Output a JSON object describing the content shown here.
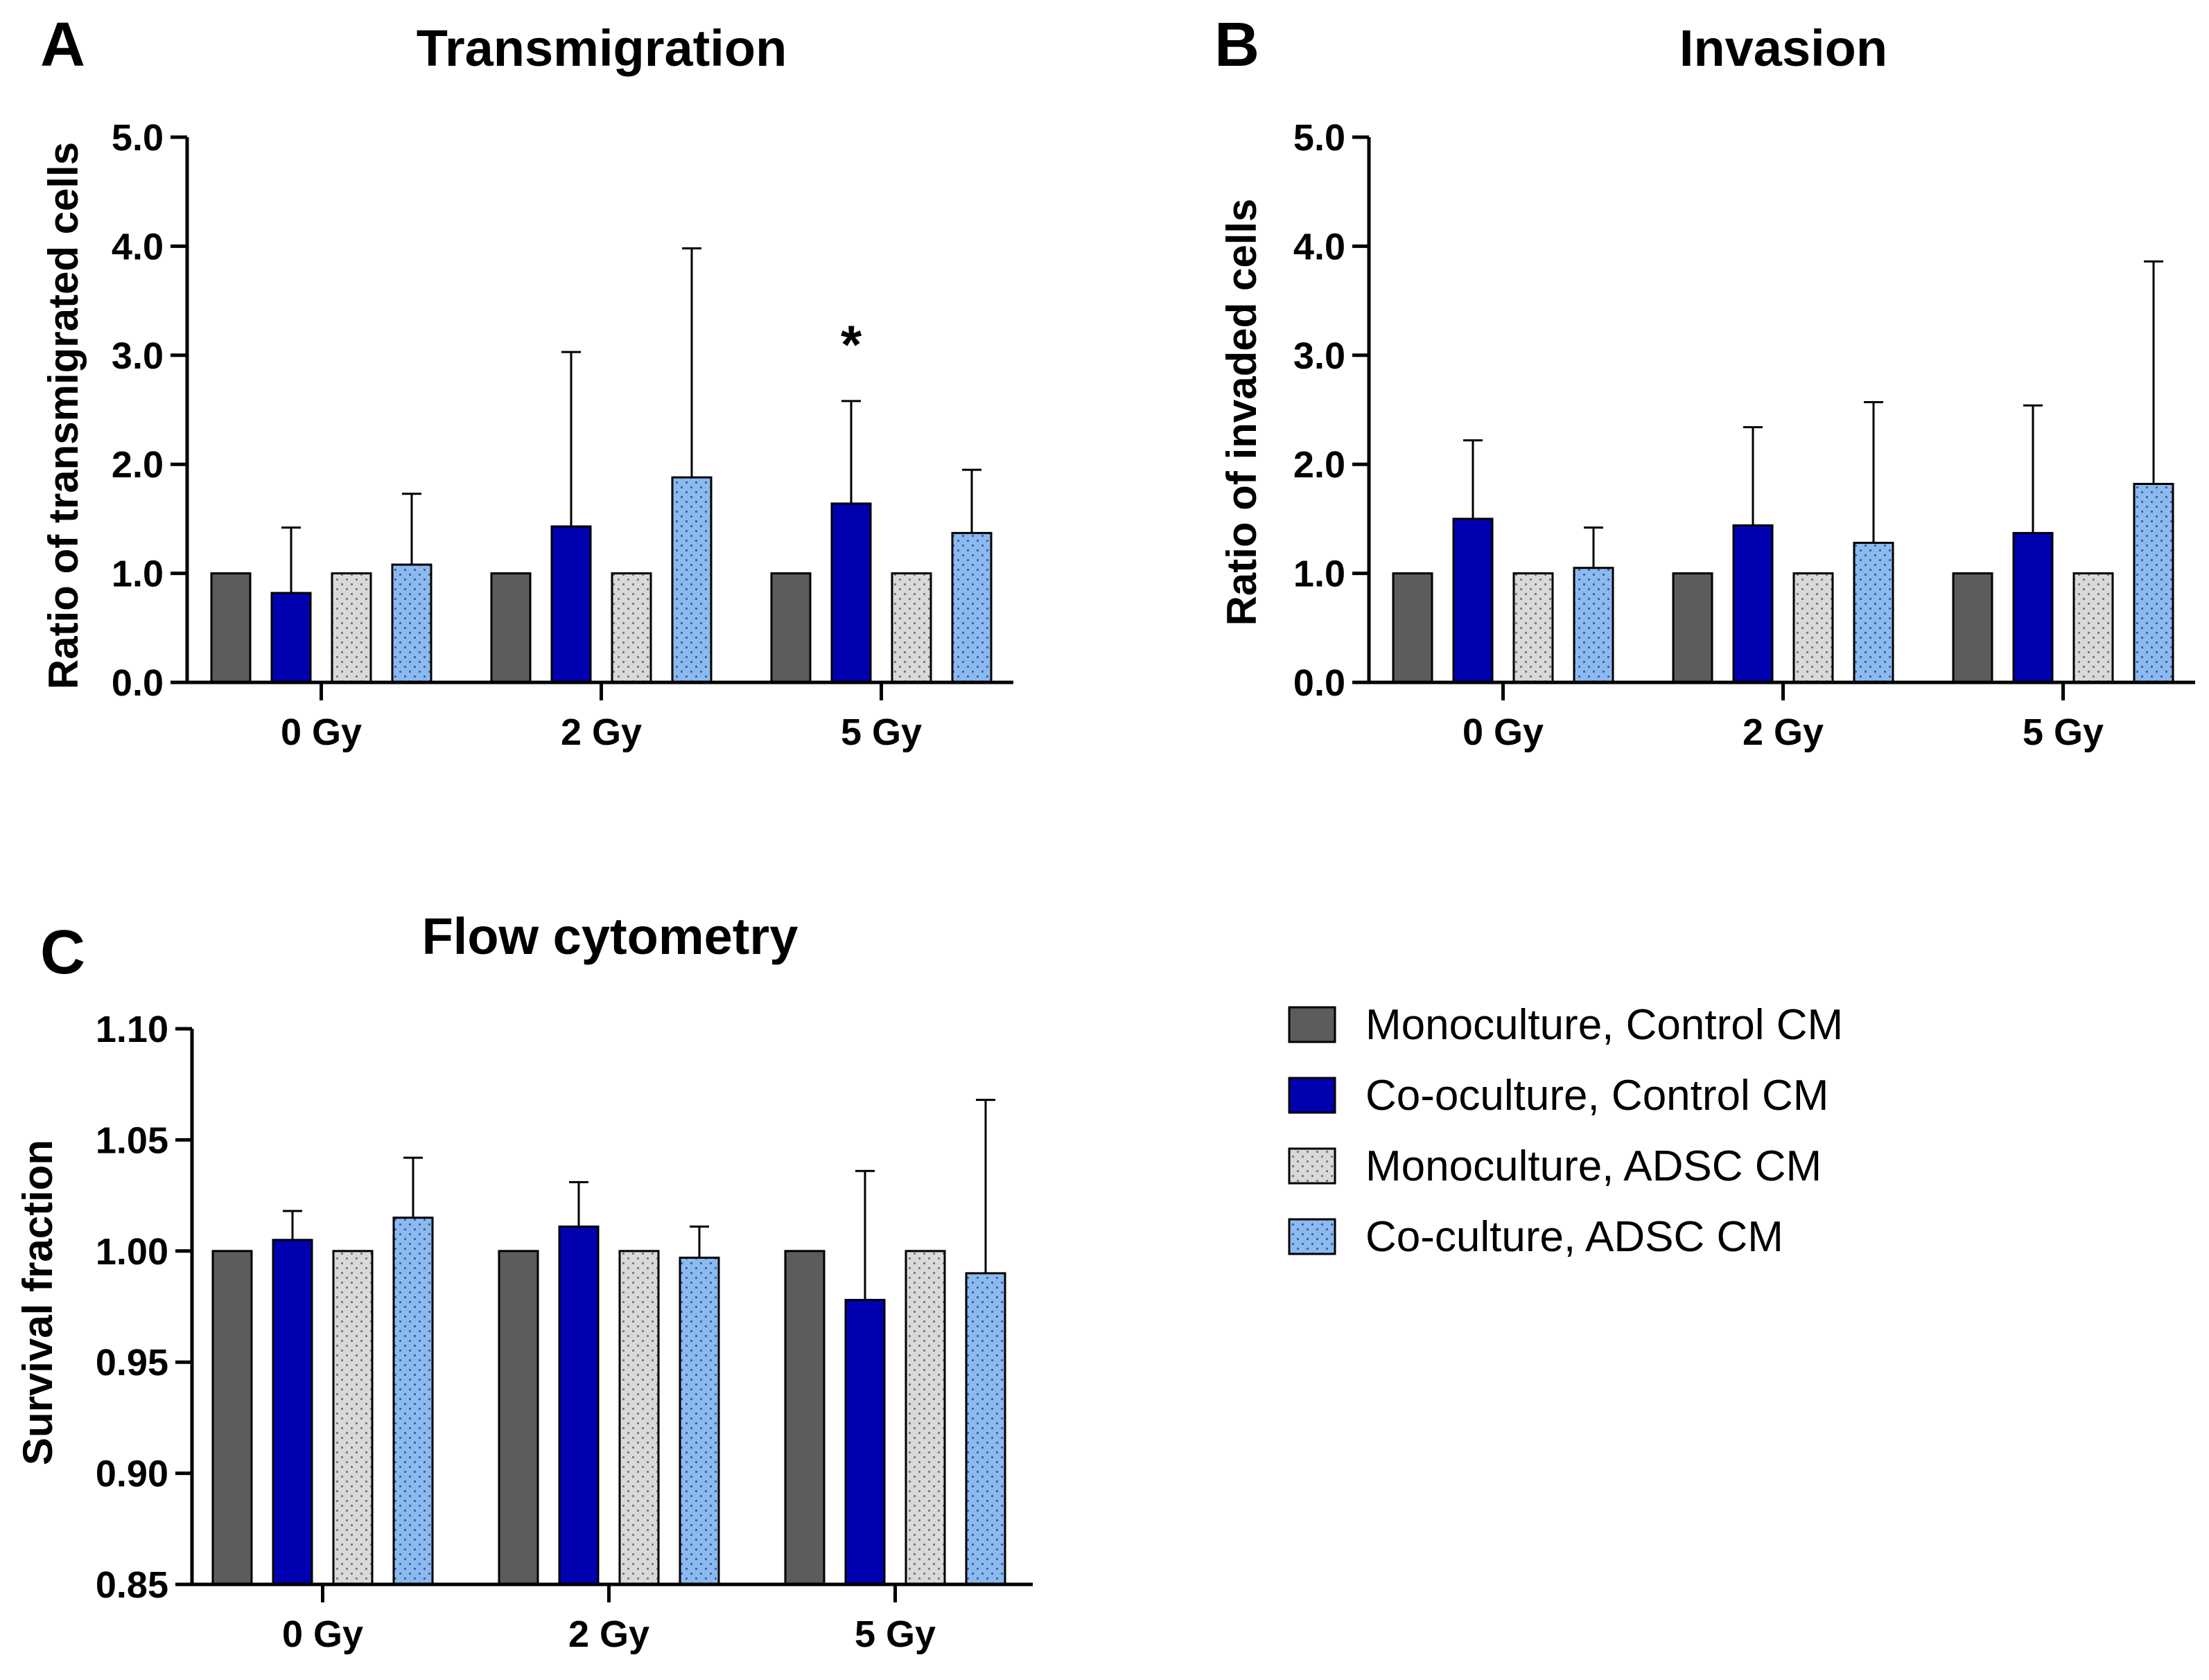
{
  "colors": {
    "monoculture_control": "#5c5c5c",
    "coculture_control": "#0000b0",
    "monoculture_adsc": "#d9d9d9",
    "coculture_adsc": "#8cbaf0"
  },
  "legend": [
    {
      "label": "Monoculture, Control CM",
      "series": 0
    },
    {
      "label": "Co-oculture, Control CM",
      "series": 1
    },
    {
      "label": "Monoculture, ADSC CM",
      "series": 2
    },
    {
      "label": "Co-culture, ADSC CM",
      "series": 3
    }
  ],
  "chart_data": [
    {
      "panel": "A",
      "type": "bar",
      "title": "Transmigration",
      "ylabel": "Ratio of transmigrated cells",
      "xlabel": "",
      "categories": [
        "0 Gy",
        "2 Gy",
        "5 Gy"
      ],
      "ylim": [
        0,
        5
      ],
      "yticks": [
        "0.0",
        "1.0",
        "2.0",
        "3.0",
        "4.0",
        "5.0"
      ],
      "series": [
        {
          "name": "Monoculture, Control CM",
          "values": [
            1.0,
            1.0,
            1.0
          ],
          "errors": [
            0,
            0,
            0
          ]
        },
        {
          "name": "Co-oculture, Control CM",
          "values": [
            0.82,
            1.43,
            1.64
          ],
          "errors": [
            0.6,
            1.6,
            0.94
          ]
        },
        {
          "name": "Monoculture, ADSC CM",
          "values": [
            1.0,
            1.0,
            1.0
          ],
          "errors": [
            0,
            0,
            0
          ]
        },
        {
          "name": "Co-culture, ADSC CM",
          "values": [
            1.08,
            1.88,
            1.37
          ],
          "errors": [
            0.65,
            2.1,
            0.58
          ]
        }
      ],
      "annotations": [
        {
          "text": "*",
          "category": 2,
          "series": 1
        }
      ]
    },
    {
      "panel": "B",
      "type": "bar",
      "title": "Invasion",
      "ylabel": "Ratio of invaded cells",
      "xlabel": "",
      "categories": [
        "0 Gy",
        "2 Gy",
        "5 Gy"
      ],
      "ylim": [
        0,
        5
      ],
      "yticks": [
        "0.0",
        "1.0",
        "2.0",
        "3.0",
        "4.0",
        "5.0"
      ],
      "series": [
        {
          "name": "Monoculture, Control CM",
          "values": [
            1.0,
            1.0,
            1.0
          ],
          "errors": [
            0,
            0,
            0
          ]
        },
        {
          "name": "Co-oculture, Control CM",
          "values": [
            1.5,
            1.44,
            1.37
          ],
          "errors": [
            0.72,
            0.9,
            1.17
          ]
        },
        {
          "name": "Monoculture, ADSC CM",
          "values": [
            1.0,
            1.0,
            1.0
          ],
          "errors": [
            0,
            0,
            0
          ]
        },
        {
          "name": "Co-culture, ADSC CM",
          "values": [
            1.05,
            1.28,
            1.82
          ],
          "errors": [
            0.37,
            1.29,
            2.04
          ]
        }
      ],
      "annotations": []
    },
    {
      "panel": "C",
      "type": "bar",
      "title": "Flow cytometry",
      "ylabel": "Survival fraction",
      "xlabel": "",
      "categories": [
        "0 Gy",
        "2 Gy",
        "5 Gy"
      ],
      "ylim": [
        0.85,
        1.1
      ],
      "yticks": [
        "0.85",
        "0.90",
        "0.95",
        "1.00",
        "1.05",
        "1.10"
      ],
      "series": [
        {
          "name": "Monoculture, Control CM",
          "values": [
            1.0,
            1.0,
            1.0
          ],
          "errors": [
            0,
            0,
            0
          ]
        },
        {
          "name": "Co-oculture, Control CM",
          "values": [
            1.005,
            1.011,
            0.978
          ],
          "errors": [
            0.013,
            0.02,
            0.058
          ]
        },
        {
          "name": "Monoculture, ADSC CM",
          "values": [
            1.0,
            1.0,
            1.0
          ],
          "errors": [
            0,
            0,
            0
          ]
        },
        {
          "name": "Co-culture, ADSC CM",
          "values": [
            1.015,
            0.997,
            0.99
          ],
          "errors": [
            0.027,
            0.014,
            0.078
          ]
        }
      ],
      "annotations": []
    }
  ]
}
